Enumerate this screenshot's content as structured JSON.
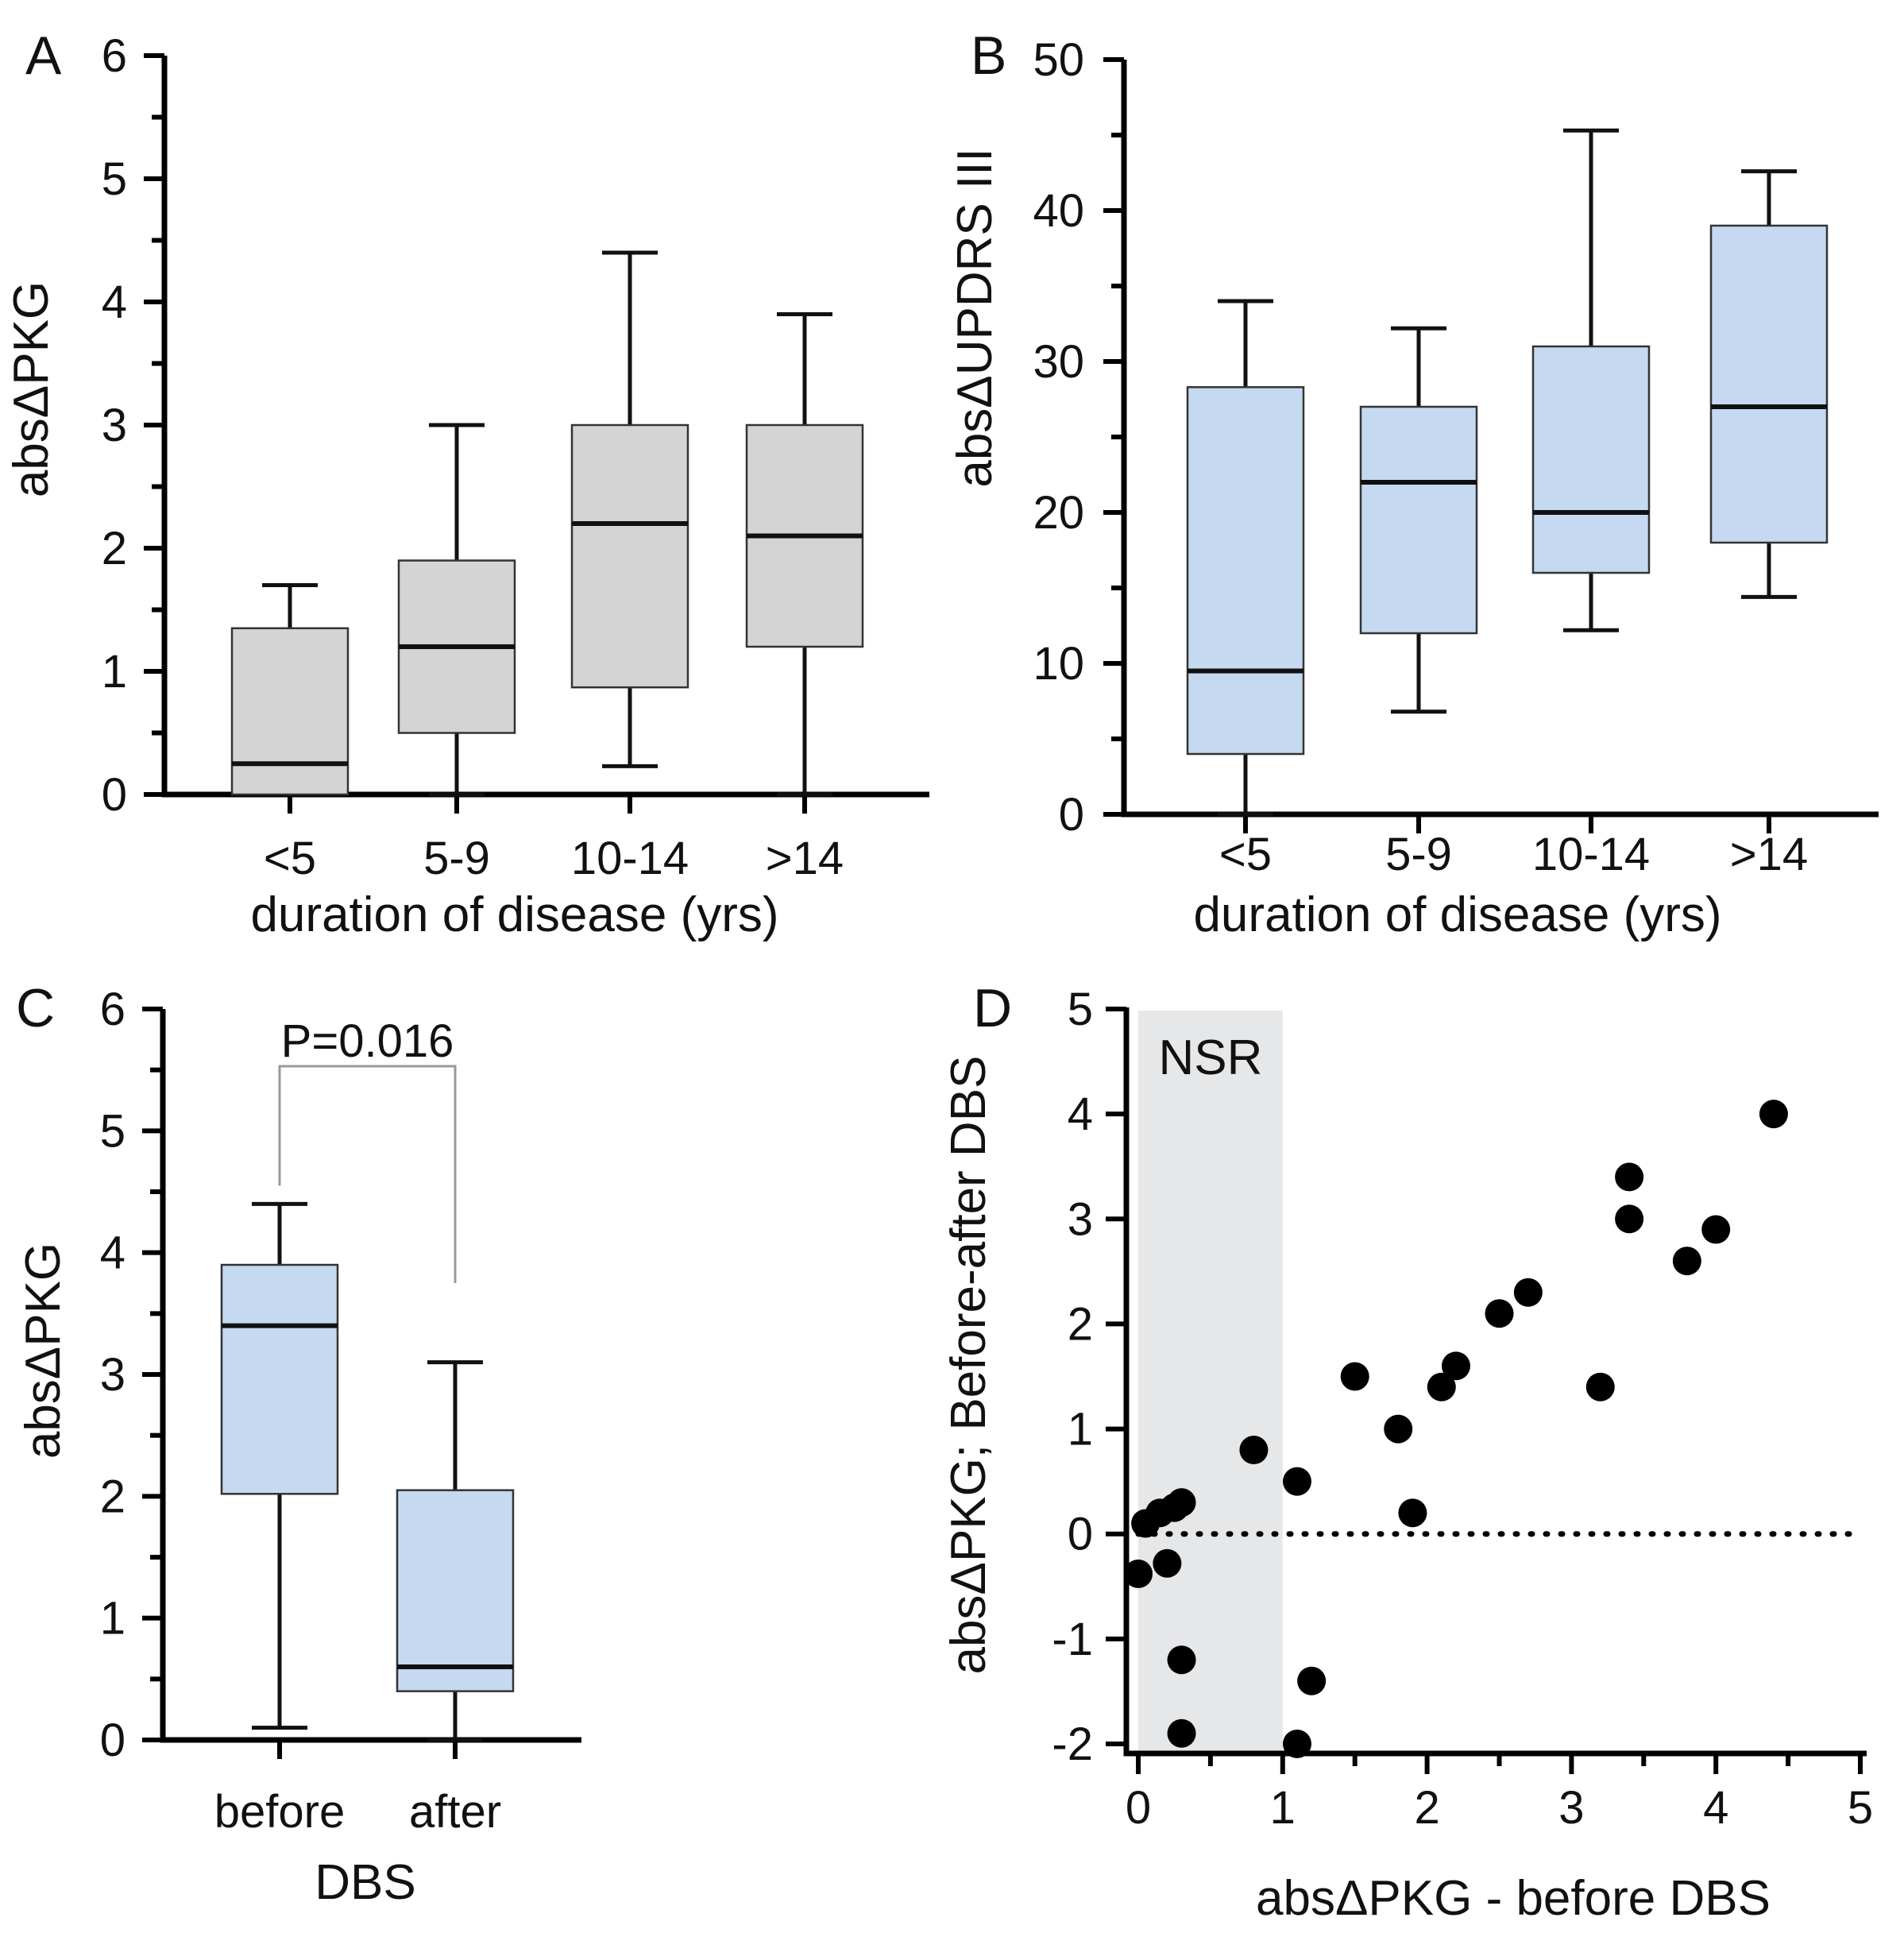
{
  "colors": {
    "gray_box": "#d4d4d4",
    "blue_box": "#c5d9f0",
    "nsr_region": "#e6e7e9",
    "points": "#000000",
    "bracket": "#999999"
  },
  "chart_data": [
    {
      "panel": "A",
      "type": "box",
      "title": "",
      "xlabel": "duration of disease (yrs)",
      "ylabel": "absΔPKG",
      "ylim": [
        0,
        6
      ],
      "yticks": [
        "0",
        "1",
        "2",
        "3",
        "4",
        "5",
        "6"
      ],
      "categories": [
        "<5",
        "5-9",
        "10-14",
        ">14"
      ],
      "boxes": [
        {
          "min": 0.0,
          "q1": 0.0,
          "median": 0.25,
          "q3": 1.35,
          "max": 1.7
        },
        {
          "min": 0.0,
          "q1": 0.5,
          "median": 1.2,
          "q3": 1.9,
          "max": 3.0
        },
        {
          "min": 0.23,
          "q1": 0.87,
          "median": 2.2,
          "q3": 3.0,
          "max": 4.4
        },
        {
          "min": 0.0,
          "q1": 1.2,
          "median": 2.1,
          "q3": 3.0,
          "max": 3.9
        }
      ],
      "box_color": "gray"
    },
    {
      "panel": "B",
      "type": "box",
      "title": "",
      "xlabel": "duration of disease (yrs)",
      "ylabel": "absΔUPDRS III",
      "ylim": [
        0,
        50
      ],
      "yticks": [
        "0",
        "10",
        "20",
        "30",
        "40",
        "50"
      ],
      "categories": [
        "<5",
        "5-9",
        "10-14",
        ">14"
      ],
      "boxes": [
        {
          "min": 0.0,
          "q1": 4.0,
          "median": 9.5,
          "q3": 28.3,
          "max": 34.0
        },
        {
          "min": 6.8,
          "q1": 12.0,
          "median": 22.0,
          "q3": 27.0,
          "max": 32.2
        },
        {
          "min": 12.2,
          "q1": 16.0,
          "median": 20.0,
          "q3": 31.0,
          "max": 45.3
        },
        {
          "min": 14.4,
          "q1": 18.0,
          "median": 27.0,
          "q3": 39.0,
          "max": 42.6
        }
      ],
      "box_color": "blue"
    },
    {
      "panel": "C",
      "type": "box",
      "title": "",
      "xlabel": "DBS",
      "ylabel": "absΔPKG",
      "ylim": [
        0,
        6
      ],
      "yticks": [
        "0",
        "1",
        "2",
        "3",
        "4",
        "5",
        "6"
      ],
      "categories": [
        "before",
        "after"
      ],
      "boxes": [
        {
          "min": 0.1,
          "q1": 2.02,
          "median": 3.4,
          "q3": 3.9,
          "max": 4.4
        },
        {
          "min": 0.0,
          "q1": 0.4,
          "median": 0.6,
          "q3": 2.05,
          "max": 3.1
        }
      ],
      "box_color": "blue",
      "annotation": "P=0.016"
    },
    {
      "panel": "D",
      "type": "scatter",
      "title": "",
      "xlabel": "absΔPKG - before DBS",
      "ylabel": "absΔPKG; Before-after DBS",
      "xlim": [
        0,
        5
      ],
      "ylim": [
        -2,
        5
      ],
      "xticks": [
        "0",
        "1",
        "2",
        "3",
        "4",
        "5"
      ],
      "yticks": [
        "-2",
        "-1",
        "0",
        "1",
        "2",
        "3",
        "4",
        "5"
      ],
      "region_label": "NSR",
      "region_x": [
        0,
        1
      ],
      "reference_line_y": 0,
      "points": [
        {
          "x": 0.0,
          "y": -0.38
        },
        {
          "x": 0.05,
          "y": 0.1
        },
        {
          "x": 0.15,
          "y": 0.2
        },
        {
          "x": 0.2,
          "y": -0.28
        },
        {
          "x": 0.25,
          "y": 0.25
        },
        {
          "x": 0.3,
          "y": 0.3
        },
        {
          "x": 0.3,
          "y": -1.2
        },
        {
          "x": 0.3,
          "y": -1.9
        },
        {
          "x": 0.8,
          "y": 0.8
        },
        {
          "x": 1.1,
          "y": 0.5
        },
        {
          "x": 1.1,
          "y": -2.0
        },
        {
          "x": 1.2,
          "y": -1.4
        },
        {
          "x": 1.5,
          "y": 1.5
        },
        {
          "x": 1.8,
          "y": 1.0
        },
        {
          "x": 1.9,
          "y": 0.2
        },
        {
          "x": 2.1,
          "y": 1.4
        },
        {
          "x": 2.2,
          "y": 1.6
        },
        {
          "x": 2.5,
          "y": 2.1
        },
        {
          "x": 2.7,
          "y": 2.3
        },
        {
          "x": 3.2,
          "y": 1.4
        },
        {
          "x": 3.4,
          "y": 3.4
        },
        {
          "x": 3.4,
          "y": 3.0
        },
        {
          "x": 3.8,
          "y": 2.6
        },
        {
          "x": 4.0,
          "y": 2.9
        },
        {
          "x": 4.4,
          "y": 4.0
        }
      ]
    }
  ]
}
